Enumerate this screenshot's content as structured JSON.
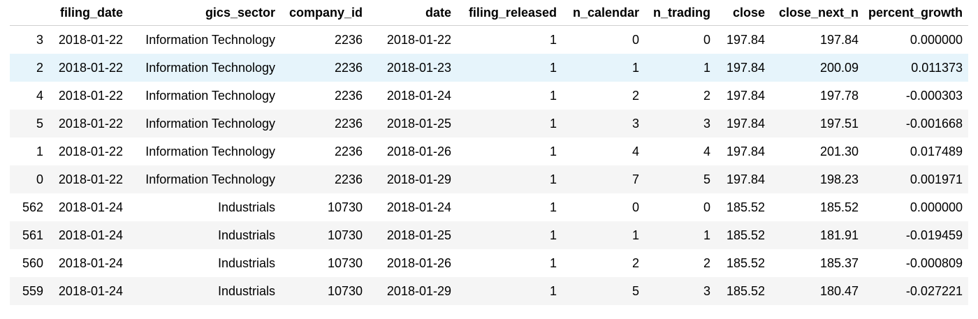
{
  "columns": [
    "",
    "filing_date",
    "gics_sector",
    "company_id",
    "date",
    "filing_released",
    "n_calendar",
    "n_trading",
    "close",
    "close_next_n",
    "percent_growth"
  ],
  "rows": [
    [
      "3",
      "2018-01-22",
      "Information Technology",
      "2236",
      "2018-01-22",
      "1",
      "0",
      "0",
      "197.84",
      "197.84",
      "0.000000"
    ],
    [
      "2",
      "2018-01-22",
      "Information Technology",
      "2236",
      "2018-01-23",
      "1",
      "1",
      "1",
      "197.84",
      "200.09",
      "0.011373"
    ],
    [
      "4",
      "2018-01-22",
      "Information Technology",
      "2236",
      "2018-01-24",
      "1",
      "2",
      "2",
      "197.84",
      "197.78",
      "-0.000303"
    ],
    [
      "5",
      "2018-01-22",
      "Information Technology",
      "2236",
      "2018-01-25",
      "1",
      "3",
      "3",
      "197.84",
      "197.51",
      "-0.001668"
    ],
    [
      "1",
      "2018-01-22",
      "Information Technology",
      "2236",
      "2018-01-26",
      "1",
      "4",
      "4",
      "197.84",
      "201.30",
      "0.017489"
    ],
    [
      "0",
      "2018-01-22",
      "Information Technology",
      "2236",
      "2018-01-29",
      "1",
      "7",
      "5",
      "197.84",
      "198.23",
      "0.001971"
    ],
    [
      "562",
      "2018-01-24",
      "Industrials",
      "10730",
      "2018-01-24",
      "1",
      "0",
      "0",
      "185.52",
      "185.52",
      "0.000000"
    ],
    [
      "561",
      "2018-01-24",
      "Industrials",
      "10730",
      "2018-01-25",
      "1",
      "1",
      "1",
      "185.52",
      "181.91",
      "-0.019459"
    ],
    [
      "560",
      "2018-01-24",
      "Industrials",
      "10730",
      "2018-01-26",
      "1",
      "2",
      "2",
      "185.52",
      "185.37",
      "-0.000809"
    ],
    [
      "559",
      "2018-01-24",
      "Industrials",
      "10730",
      "2018-01-29",
      "1",
      "5",
      "3",
      "185.52",
      "180.47",
      "-0.027221"
    ]
  ],
  "hovered_row_index": 1,
  "colors": {
    "hover": "#e6f4fb",
    "stripe": "#f5f5f5",
    "border": "#d0d0d0"
  }
}
